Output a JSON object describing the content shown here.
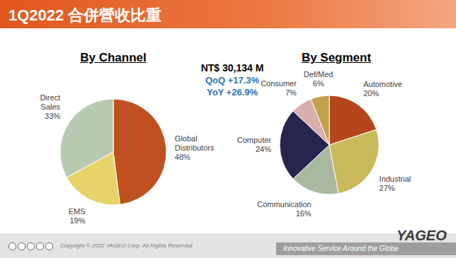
{
  "header": {
    "title": "1Q2022 合併營收比重"
  },
  "summary": {
    "revenue": "NT$ 30,134 M",
    "qoq": "QoQ +17.3%",
    "yoy": "YoY +26.9%"
  },
  "chart_data": [
    {
      "type": "pie",
      "title": "By Channel",
      "categories": [
        "Global Distributors",
        "EMS",
        "Direct Sales"
      ],
      "values": [
        48,
        19,
        33
      ],
      "value_labels": [
        "48%",
        "19%",
        "33%"
      ],
      "colors": [
        "#C0501F",
        "#E8D36A",
        "#B7C9B0"
      ],
      "data_labels": true
    },
    {
      "type": "pie",
      "title": "By Segment",
      "categories": [
        "Automotive",
        "Industrial",
        "Communication",
        "Computer",
        "Consumer",
        "Def/Med"
      ],
      "values": [
        20,
        27,
        16,
        24,
        7,
        6
      ],
      "value_labels": [
        "20%",
        "27%",
        "16%",
        "24%",
        "7%",
        "6%"
      ],
      "colors": [
        "#B5451B",
        "#C9B95A",
        "#A9B9A0",
        "#27254F",
        "#D9AEAC",
        "#BFA24A"
      ],
      "data_labels": true
    }
  ],
  "footer": {
    "copyright": "Copyright © 2022 YAGEO Corp. All Rights Reserved",
    "slogan": "Innovative Service Around the Globe",
    "logo": "YAGEO"
  }
}
